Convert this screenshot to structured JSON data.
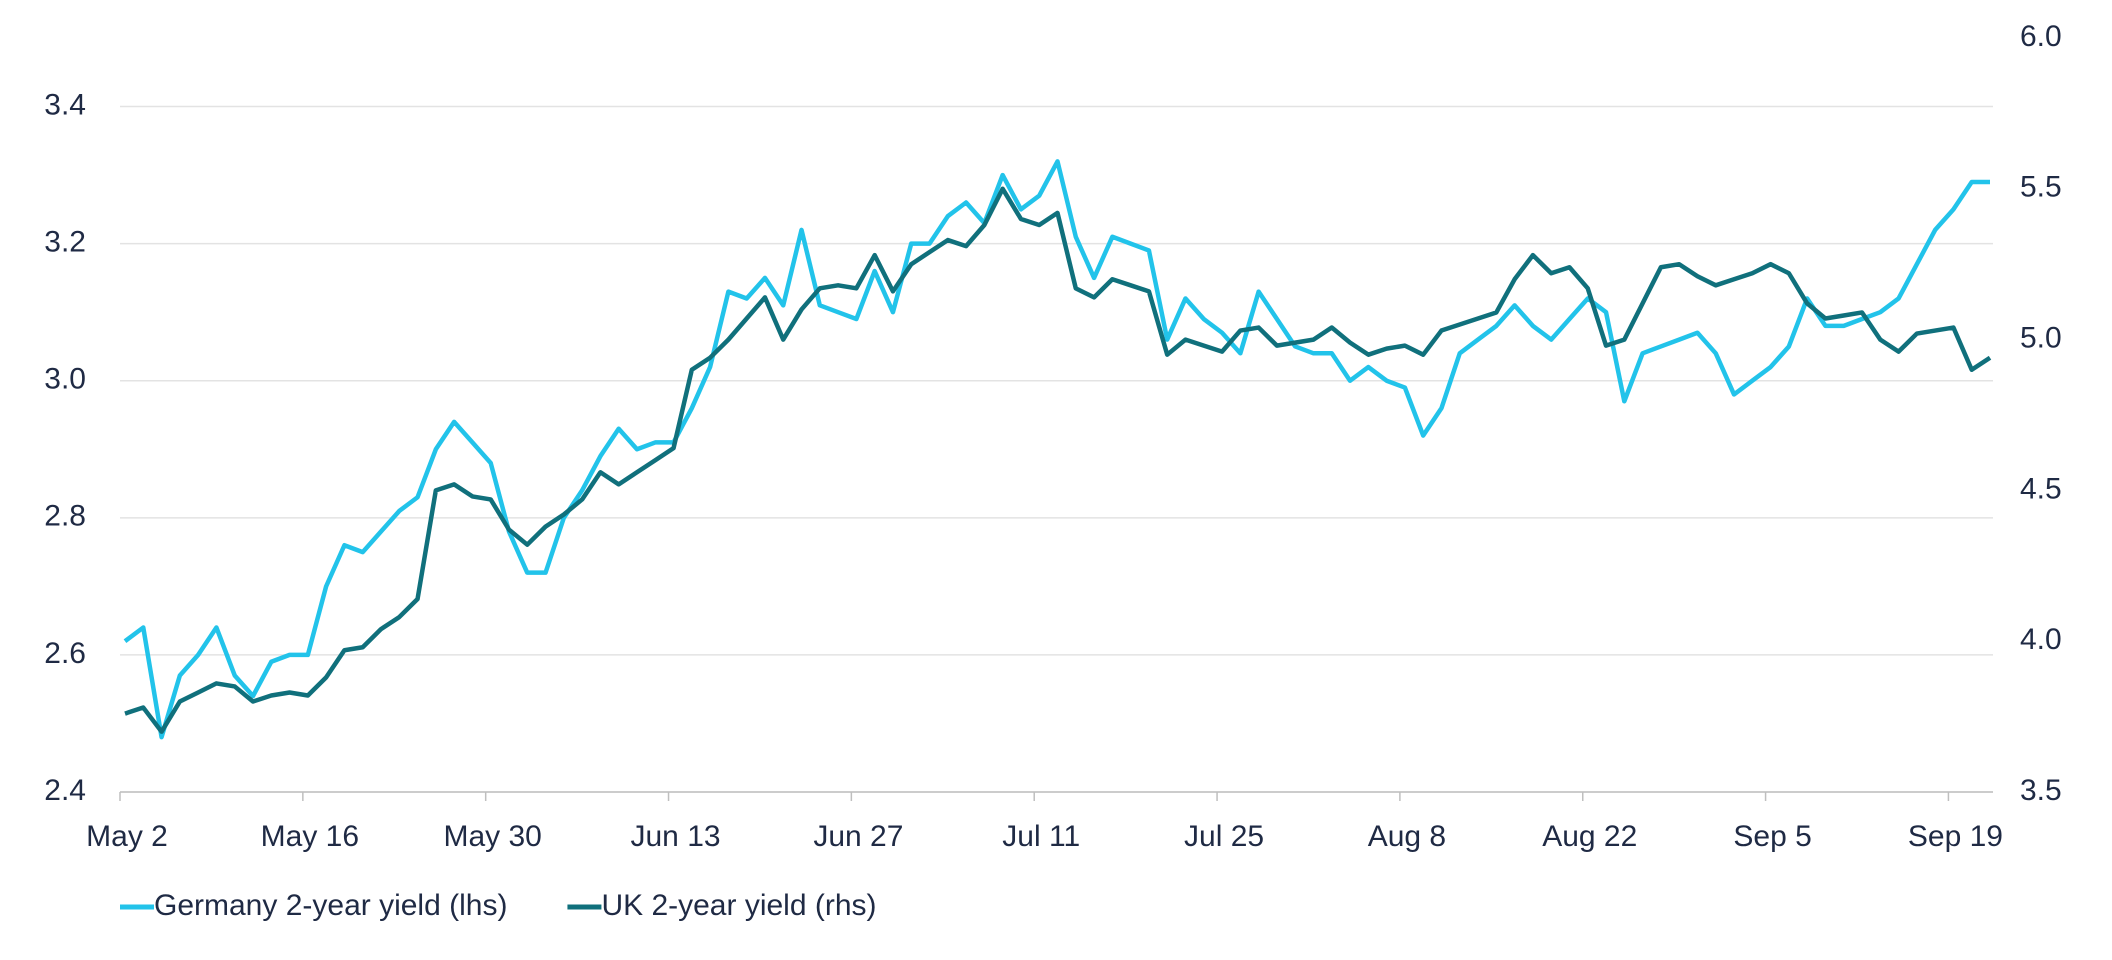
{
  "chart_data": {
    "type": "line",
    "categories": [
      "May 2",
      null,
      null,
      null,
      null,
      null,
      null,
      null,
      null,
      null,
      "May 16",
      null,
      null,
      null,
      null,
      null,
      null,
      null,
      null,
      null,
      "May 30",
      null,
      null,
      null,
      null,
      null,
      null,
      null,
      null,
      null,
      "Jun 13",
      null,
      null,
      null,
      null,
      null,
      null,
      null,
      null,
      null,
      "Jun 27",
      null,
      null,
      null,
      null,
      null,
      null,
      null,
      null,
      null,
      "Jul 11",
      null,
      null,
      null,
      null,
      null,
      null,
      null,
      null,
      null,
      "Jul 25",
      null,
      null,
      null,
      null,
      null,
      null,
      null,
      null,
      null,
      "Aug 8",
      null,
      null,
      null,
      null,
      null,
      null,
      null,
      null,
      null,
      "Aug 22",
      null,
      null,
      null,
      null,
      null,
      null,
      null,
      null,
      null,
      "Sep 5",
      null,
      null,
      null,
      null,
      null,
      null,
      null,
      null,
      null,
      "Sep 19",
      null,
      null
    ],
    "series": [
      {
        "name": "Germany 2-year yield (lhs)",
        "color": "#22c3ea",
        "axis": "y",
        "values": [
          2.62,
          2.64,
          2.48,
          2.57,
          2.6,
          2.64,
          2.57,
          2.54,
          2.59,
          2.6,
          2.6,
          2.7,
          2.76,
          2.75,
          2.78,
          2.81,
          2.83,
          2.9,
          2.94,
          2.91,
          2.88,
          2.78,
          2.72,
          2.72,
          2.8,
          2.84,
          2.89,
          2.93,
          2.9,
          2.91,
          2.91,
          2.96,
          3.02,
          3.13,
          3.12,
          3.15,
          3.11,
          3.22,
          3.11,
          3.1,
          3.09,
          3.16,
          3.1,
          3.2,
          3.2,
          3.24,
          3.26,
          3.23,
          3.3,
          3.25,
          3.27,
          3.32,
          3.21,
          3.15,
          3.21,
          3.2,
          3.19,
          3.06,
          3.12,
          3.09,
          3.07,
          3.04,
          3.13,
          3.09,
          3.05,
          3.04,
          3.04,
          3.0,
          3.02,
          3.0,
          2.99,
          2.92,
          2.96,
          3.04,
          3.06,
          3.08,
          3.11,
          3.08,
          3.06,
          3.09,
          3.12,
          3.1,
          2.97,
          3.04,
          3.05,
          3.06,
          3.07,
          3.04,
          2.98,
          3.0,
          3.02,
          3.05,
          3.12,
          3.08,
          3.08,
          3.09,
          3.1,
          3.12,
          3.17,
          3.22,
          3.25,
          3.29,
          3.29
        ]
      },
      {
        "name": "UK 2-year yield (rhs)",
        "color": "#10707c",
        "axis": "y2",
        "values": [
          3.76,
          3.78,
          3.7,
          3.8,
          3.83,
          3.86,
          3.85,
          3.8,
          3.82,
          3.83,
          3.82,
          3.88,
          3.97,
          3.98,
          4.04,
          4.08,
          4.14,
          4.5,
          4.52,
          4.48,
          4.47,
          4.37,
          4.32,
          4.38,
          4.42,
          4.47,
          4.56,
          4.52,
          4.56,
          4.6,
          4.64,
          4.9,
          4.94,
          5.0,
          5.07,
          5.14,
          5.0,
          5.1,
          5.17,
          5.18,
          5.17,
          5.28,
          5.16,
          5.25,
          5.29,
          5.33,
          5.31,
          5.38,
          5.5,
          5.4,
          5.38,
          5.42,
          5.17,
          5.14,
          5.2,
          5.18,
          5.16,
          4.95,
          5.0,
          4.98,
          4.96,
          5.03,
          5.04,
          4.98,
          4.99,
          5.0,
          5.04,
          4.99,
          4.95,
          4.97,
          4.98,
          4.95,
          5.03,
          5.05,
          5.07,
          5.09,
          5.2,
          5.28,
          5.22,
          5.24,
          5.17,
          4.98,
          5.0,
          5.12,
          5.24,
          5.25,
          5.21,
          5.18,
          5.2,
          5.22,
          5.25,
          5.22,
          5.12,
          5.07,
          5.08,
          5.09,
          5.0,
          4.96,
          5.02,
          5.03,
          5.04,
          4.9,
          4.94
        ]
      }
    ],
    "ylim": [
      2.4,
      3.5
    ],
    "yticks": [
      2.4,
      2.6,
      2.8,
      {
        "value": 3.0,
        "label": "3.0"
      },
      3.2,
      3.4
    ],
    "y2lim": [
      3.5,
      6.0
    ],
    "y2ticks": [
      3.5,
      {
        "value": 4.0,
        "label": "4.0"
      },
      4.5,
      {
        "value": 5.0,
        "label": "5.0"
      },
      5.5,
      {
        "value": 6.0,
        "label": "6.0"
      }
    ],
    "grid": true,
    "legend": "bottom-left"
  }
}
